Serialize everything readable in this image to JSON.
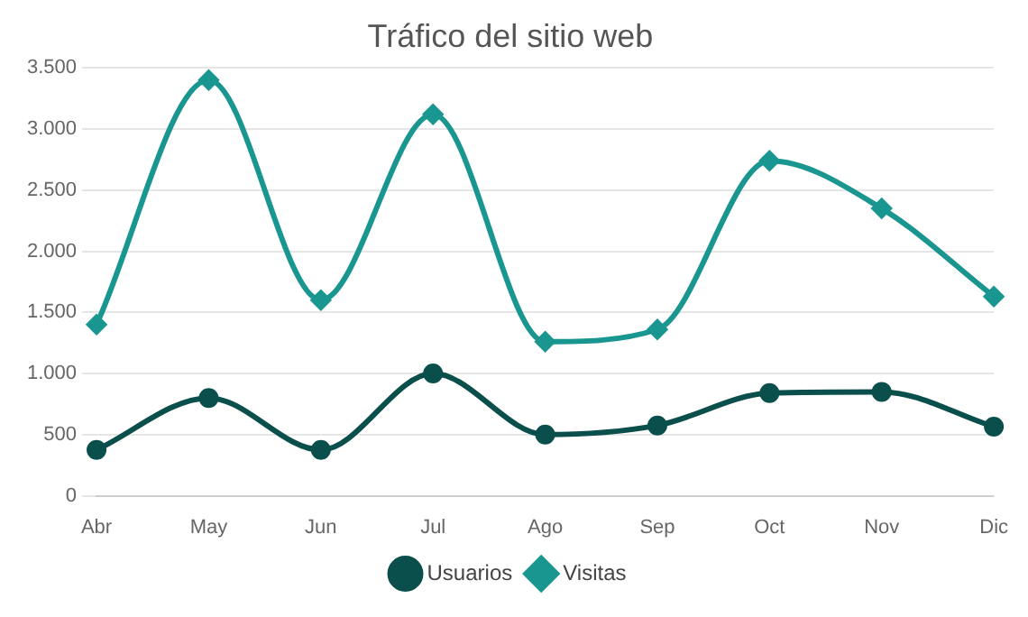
{
  "chart_data": {
    "type": "line",
    "title": "Tráfico del sitio web",
    "categories": [
      "Abr",
      "May",
      "Jun",
      "Jul",
      "Ago",
      "Sep",
      "Oct",
      "Nov",
      "Dic"
    ],
    "series": [
      {
        "name": "Usuarios",
        "color": "#0b4f4c",
        "marker": "circle",
        "values": [
          375,
          800,
          375,
          1000,
          500,
          575,
          840,
          850,
          565
        ]
      },
      {
        "name": "Visitas",
        "color": "#1a9690",
        "marker": "diamond",
        "values": [
          1400,
          3400,
          1600,
          3120,
          1260,
          1360,
          2740,
          2350,
          1630
        ]
      }
    ],
    "ylim": [
      0,
      3500
    ],
    "yticks": [
      0,
      {
        "value": 500,
        "label": "500"
      },
      {
        "value": 1000,
        "label": "1.000"
      },
      {
        "value": 1500,
        "label": "1.500"
      },
      {
        "value": 2000,
        "label": "2.000"
      },
      {
        "value": 2500,
        "label": "2.500"
      },
      {
        "value": 3000,
        "label": "3.000"
      },
      {
        "value": 3500,
        "label": "3.500"
      }
    ],
    "grid": "y",
    "legend": "bottom"
  }
}
